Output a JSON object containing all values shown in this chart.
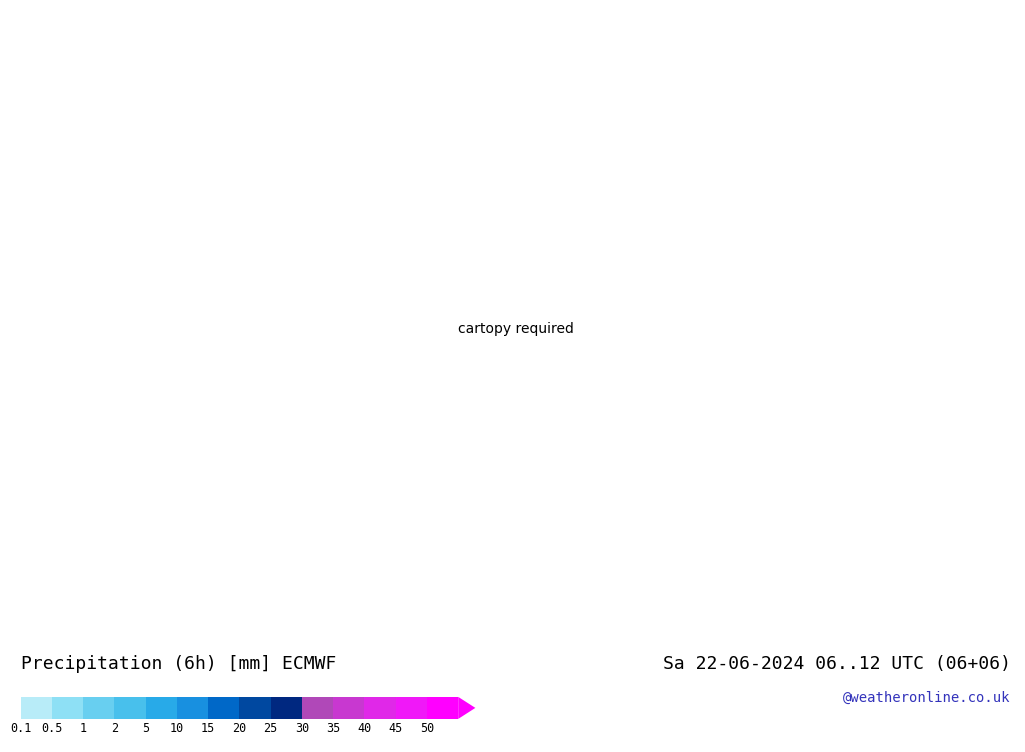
{
  "title_left": "Precipitation (6h) [mm] ECMWF",
  "title_right": "Sa 22-06-2024 06..12 UTC (06+06)",
  "credit": "@weatheronline.co.uk",
  "colorbar_levels": [
    0.1,
    0.5,
    1,
    2,
    5,
    10,
    15,
    20,
    25,
    30,
    35,
    40,
    45,
    50
  ],
  "colorbar_colors": [
    "#b8ecf8",
    "#8ee0f5",
    "#68cff0",
    "#48c0ec",
    "#28aae8",
    "#1890e0",
    "#0068c8",
    "#0048a0",
    "#002880",
    "#b048b8",
    "#c838d0",
    "#e028e8",
    "#f018f8",
    "#ff00ff"
  ],
  "land_color": "#c8d890",
  "ocean_color": "#c8dce8",
  "precip_light1": "#c8eef8",
  "precip_light2": "#90d4f0",
  "precip_mid": "#50b0e8",
  "precip_dark": "#1060c0",
  "precip_vdark": "#002880",
  "background_left": "#dce8f0",
  "background_color": "#ffffff",
  "blue_label_color": "#0000cc",
  "red_label_color": "#cc0000",
  "font_family": "monospace",
  "map_extent": [
    -170,
    -50,
    15,
    80
  ]
}
